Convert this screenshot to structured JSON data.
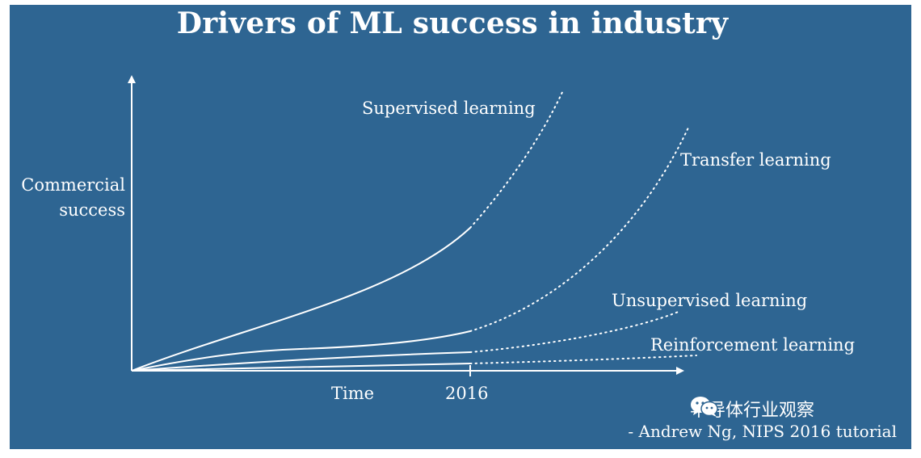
{
  "title": "Drivers of ML success in industry",
  "y_axis_label_line1": "Commercial",
  "y_axis_label_line2": "success",
  "x_axis_label": "Time",
  "x_tick_label": "2016",
  "curves": [
    {
      "label": "Supervised learning"
    },
    {
      "label": "Transfer learning"
    },
    {
      "label": "Unsupervised learning"
    },
    {
      "label": "Reinforcement learning"
    }
  ],
  "watermark": "半导体行业观察",
  "watermark_icon": "wechat-icon",
  "credit": "- Andrew Ng, NIPS 2016 tutorial",
  "colors": {
    "background": "#2e6592",
    "foreground": "#ffffff"
  }
}
